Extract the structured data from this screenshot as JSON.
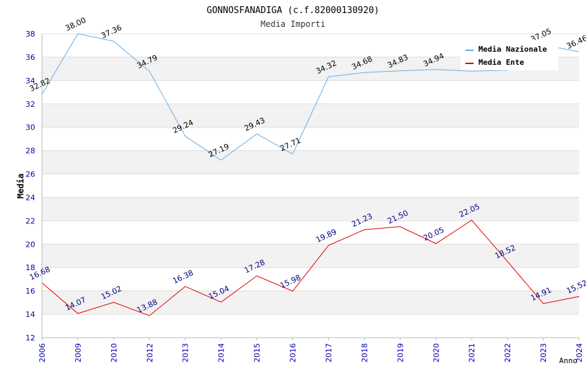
{
  "chart_data": {
    "type": "line",
    "title": "GONNOSFANADIGA (c.f.82000130920)",
    "subtitle": "Media Importi",
    "xlabel": "Anno",
    "ylabel": "Media",
    "ylim": [
      12,
      38
    ],
    "yticks": [
      "12",
      "14",
      "16",
      "18",
      "20",
      "22",
      "24",
      "26",
      "28",
      "30",
      "32",
      "34",
      "36",
      "38"
    ],
    "categories": [
      "2006",
      "2009",
      "2010",
      "2012",
      "2013",
      "2014",
      "2015",
      "2016",
      "2017",
      "2018",
      "2019",
      "2020",
      "2021",
      "2022",
      "2023",
      "2024"
    ],
    "legend_position": "top-right",
    "series": [
      {
        "name": "Media Nazionale",
        "color": "#6aaee6",
        "label_color": "#000000",
        "values": [
          32.82,
          38.0,
          37.36,
          34.79,
          29.24,
          27.19,
          29.43,
          27.71,
          34.32,
          34.68,
          34.83,
          34.94,
          34.8,
          34.88,
          37.05,
          36.46
        ],
        "labels": [
          "32.82",
          "38.00",
          "37.36",
          "34.79",
          "29.24",
          "27.19",
          "29.43",
          "27.71",
          "34.32",
          "34.68",
          "34.83",
          "34.94",
          "",
          "",
          "37.05",
          "36.46"
        ]
      },
      {
        "name": "Media Ente",
        "color": "#dd0000",
        "label_color": "#000080",
        "values": [
          16.68,
          14.07,
          15.02,
          13.88,
          16.38,
          15.04,
          17.28,
          15.98,
          19.89,
          21.23,
          21.5,
          20.05,
          22.05,
          18.52,
          14.91,
          15.52
        ],
        "labels": [
          "16.68",
          "14.07",
          "15.02",
          "13.88",
          "16.38",
          "15.04",
          "17.28",
          "15.98",
          "19.89",
          "21.23",
          "21.50",
          "20.05",
          "22.05",
          "18.52",
          "14.91",
          "15.52"
        ]
      }
    ]
  }
}
